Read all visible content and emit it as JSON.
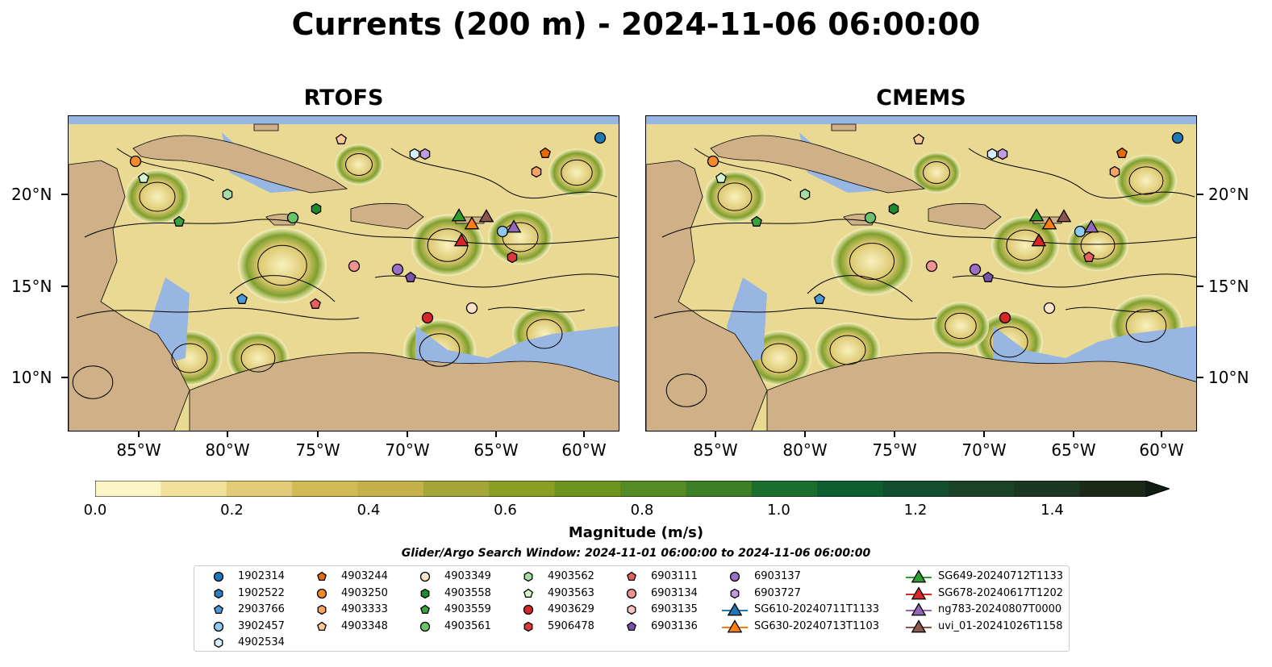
{
  "title": "Currents (200 m) - 2024-11-06 06:00:00",
  "panels": [
    {
      "title": "RTOFS"
    },
    {
      "title": "CMEMS"
    }
  ],
  "axes": {
    "lon_ticks": [
      "85°W",
      "80°W",
      "75°W",
      "70°W",
      "65°W",
      "60°W"
    ],
    "lat_ticks": [
      "20°N",
      "15°N",
      "10°N"
    ]
  },
  "colorbar": {
    "title": "Magnitude (m/s)",
    "ticks": [
      "0.0",
      "0.2",
      "0.4",
      "0.6",
      "0.8",
      "1.0",
      "1.2",
      "1.4"
    ],
    "colors": [
      "#fcf5c6",
      "#f1e19b",
      "#e2cc77",
      "#d2bb55",
      "#c5b14a",
      "#a4a63a",
      "#8a9e25",
      "#6d951d",
      "#558b24",
      "#3d7f25",
      "#1c6e2f",
      "#0e5e30",
      "#134f2e",
      "#1b4227",
      "#1b3621",
      "#1b2a17"
    ]
  },
  "search_window": "Glider/Argo Search Window: 2024-11-01 06:00:00 to 2024-11-06 06:00:00",
  "legend": {
    "items": [
      {
        "label": "1902314",
        "marker": "circle",
        "color": "#1f77b4"
      },
      {
        "label": "1902522",
        "marker": "hexagon",
        "color": "#2f7fc0"
      },
      {
        "label": "2903766",
        "marker": "pentagon",
        "color": "#4a9ad8"
      },
      {
        "label": "3902457",
        "marker": "circle",
        "color": "#8ec9ee"
      },
      {
        "label": "4902534",
        "marker": "hexagon",
        "color": "#d6f0fb"
      },
      {
        "label": "4903244",
        "marker": "pentagon",
        "color": "#e66a06"
      },
      {
        "label": "4903250",
        "marker": "circle",
        "color": "#f4892c"
      },
      {
        "label": "4903333",
        "marker": "hexagon",
        "color": "#f6a662"
      },
      {
        "label": "4903348",
        "marker": "pentagon",
        "color": "#fbc796"
      },
      {
        "label": "4903349",
        "marker": "circle",
        "color": "#fde3c8"
      },
      {
        "label": "4903558",
        "marker": "hexagon",
        "color": "#1f8a2d"
      },
      {
        "label": "4903559",
        "marker": "pentagon",
        "color": "#3aa33a"
      },
      {
        "label": "4903561",
        "marker": "circle",
        "color": "#6cc46a"
      },
      {
        "label": "4903562",
        "marker": "hexagon",
        "color": "#a6dea2"
      },
      {
        "label": "4903563",
        "marker": "pentagon",
        "color": "#d8f3d2"
      },
      {
        "label": "4903629",
        "marker": "circle",
        "color": "#d62728"
      },
      {
        "label": "5906478",
        "marker": "hexagon",
        "color": "#dc3a3a"
      },
      {
        "label": "6903111",
        "marker": "pentagon",
        "color": "#e66060"
      },
      {
        "label": "6903134",
        "marker": "circle",
        "color": "#f29393"
      },
      {
        "label": "6903135",
        "marker": "hexagon",
        "color": "#f9c3c3"
      },
      {
        "label": "6903136",
        "marker": "pentagon",
        "color": "#7b52ab"
      },
      {
        "label": "6903137",
        "marker": "circle",
        "color": "#9a6fc4"
      },
      {
        "label": "6903727",
        "marker": "hexagon",
        "color": "#bf9ce0"
      },
      {
        "label": "SG610-20240711T1133",
        "marker": "triangle",
        "color": "#1f77b4"
      },
      {
        "label": "SG630-20240713T1103",
        "marker": "triangle",
        "color": "#ff7f0e"
      },
      {
        "label": "SG649-20240712T1133",
        "marker": "triangle",
        "color": "#2ca02c"
      },
      {
        "label": "SG678-20240617T1202",
        "marker": "triangle",
        "color": "#d62728"
      },
      {
        "label": "ng783-20240807T0000",
        "marker": "triangle",
        "color": "#9467bd"
      },
      {
        "label": "uvi_01-20241026T1158",
        "marker": "triangle",
        "color": "#8c564b"
      }
    ]
  },
  "map_colors": {
    "ocean": "#97b6e1",
    "land": "#cfb087",
    "current_low": "#fcf5c6",
    "current_mid": "#d9c467",
    "current_high": "#6d951d"
  }
}
